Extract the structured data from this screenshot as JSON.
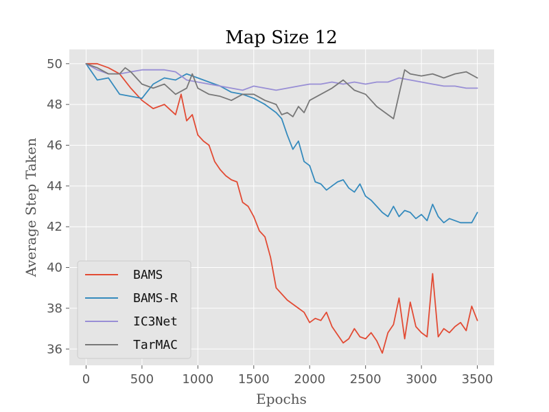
{
  "chart_data": {
    "type": "line",
    "title": "Map Size 12",
    "xlabel": "Epochs",
    "ylabel": "Average Step Taken",
    "xlim": [
      -150,
      3650
    ],
    "ylim": [
      35.2,
      50.7
    ],
    "xticks": [
      0,
      500,
      1000,
      1500,
      2000,
      2500,
      3000,
      3500
    ],
    "yticks": [
      36,
      38,
      40,
      42,
      44,
      46,
      48,
      50
    ],
    "grid": true,
    "legend_position": "lower-left",
    "series": [
      {
        "name": "BAMS",
        "color": "#e24a33",
        "x": [
          0,
          100,
          200,
          300,
          400,
          500,
          600,
          700,
          800,
          850,
          900,
          950,
          1000,
          1050,
          1100,
          1150,
          1200,
          1250,
          1300,
          1350,
          1400,
          1450,
          1500,
          1550,
          1600,
          1650,
          1700,
          1750,
          1800,
          1850,
          1900,
          1950,
          2000,
          2050,
          2100,
          2150,
          2200,
          2250,
          2300,
          2350,
          2400,
          2450,
          2500,
          2550,
          2600,
          2650,
          2700,
          2750,
          2800,
          2850,
          2900,
          2950,
          3000,
          3050,
          3100,
          3150,
          3200,
          3250,
          3300,
          3350,
          3400,
          3450,
          3500
        ],
        "y": [
          50,
          50,
          49.8,
          49.5,
          48.8,
          48.2,
          47.8,
          48,
          47.5,
          48.5,
          47.2,
          47.5,
          46.5,
          46.2,
          46,
          45.2,
          44.8,
          44.5,
          44.3,
          44.2,
          43.2,
          43,
          42.5,
          41.8,
          41.5,
          40.5,
          39,
          38.7,
          38.4,
          38.2,
          38,
          37.8,
          37.3,
          37.5,
          37.4,
          37.8,
          37.1,
          36.7,
          36.3,
          36.5,
          37,
          36.6,
          36.5,
          36.8,
          36.4,
          35.8,
          36.8,
          37.2,
          38.5,
          36.5,
          38.3,
          37.1,
          36.8,
          36.6,
          39.7,
          36.6,
          37,
          36.8,
          37.1,
          37.3,
          36.9,
          38.1,
          37.4
        ]
      },
      {
        "name": "BAMS-R",
        "color": "#348abd",
        "x": [
          0,
          100,
          200,
          300,
          400,
          500,
          600,
          700,
          800,
          900,
          1000,
          1100,
          1200,
          1300,
          1400,
          1500,
          1600,
          1700,
          1750,
          1800,
          1850,
          1900,
          1950,
          2000,
          2050,
          2100,
          2150,
          2200,
          2250,
          2300,
          2350,
          2400,
          2450,
          2500,
          2550,
          2600,
          2650,
          2700,
          2750,
          2800,
          2850,
          2900,
          2950,
          3000,
          3050,
          3100,
          3150,
          3200,
          3250,
          3300,
          3350,
          3400,
          3450,
          3500
        ],
        "y": [
          50,
          49.2,
          49.3,
          48.5,
          48.4,
          48.3,
          49,
          49.3,
          49.2,
          49.5,
          49.3,
          49.1,
          48.9,
          48.6,
          48.5,
          48.3,
          48,
          47.6,
          47.3,
          46.5,
          45.8,
          46.2,
          45.2,
          45,
          44.2,
          44.1,
          43.8,
          44,
          44.2,
          44.3,
          43.9,
          43.7,
          44.1,
          43.5,
          43.3,
          43,
          42.7,
          42.5,
          43,
          42.5,
          42.8,
          42.7,
          42.4,
          42.6,
          42.3,
          43.1,
          42.5,
          42.2,
          42.4,
          42.3,
          42.2,
          42.2,
          42.2,
          42.7
        ]
      },
      {
        "name": "IC3Net",
        "color": "#988ed5",
        "x": [
          0,
          100,
          200,
          300,
          400,
          500,
          600,
          700,
          800,
          900,
          1000,
          1100,
          1200,
          1300,
          1400,
          1500,
          1600,
          1700,
          1800,
          1900,
          2000,
          2100,
          2200,
          2300,
          2400,
          2500,
          2600,
          2700,
          2800,
          2900,
          3000,
          3100,
          3200,
          3300,
          3400,
          3500
        ],
        "y": [
          50,
          49.7,
          49.5,
          49.5,
          49.6,
          49.7,
          49.7,
          49.7,
          49.6,
          49.2,
          49.1,
          49,
          48.9,
          48.8,
          48.7,
          48.9,
          48.8,
          48.7,
          48.8,
          48.9,
          49,
          49,
          49.1,
          49,
          49.1,
          49,
          49.1,
          49.1,
          49.3,
          49.2,
          49.1,
          49,
          48.9,
          48.9,
          48.8,
          48.8
        ]
      },
      {
        "name": "TarMAC",
        "color": "#777777",
        "x": [
          0,
          100,
          200,
          300,
          350,
          400,
          500,
          600,
          700,
          800,
          900,
          950,
          1000,
          1100,
          1200,
          1300,
          1400,
          1500,
          1600,
          1700,
          1750,
          1800,
          1850,
          1900,
          1950,
          2000,
          2100,
          2200,
          2300,
          2400,
          2500,
          2600,
          2700,
          2750,
          2800,
          2850,
          2900,
          3000,
          3100,
          3200,
          3300,
          3400,
          3500
        ],
        "y": [
          50,
          49.8,
          49.5,
          49.5,
          49.8,
          49.6,
          49,
          48.8,
          49,
          48.5,
          48.8,
          49.5,
          48.8,
          48.5,
          48.4,
          48.2,
          48.5,
          48.5,
          48.2,
          48,
          47.5,
          47.6,
          47.4,
          47.9,
          47.6,
          48.2,
          48.5,
          48.8,
          49.2,
          48.7,
          48.5,
          47.9,
          47.5,
          47.3,
          48.5,
          49.7,
          49.5,
          49.4,
          49.5,
          49.3,
          49.5,
          49.6,
          49.3
        ]
      }
    ]
  }
}
